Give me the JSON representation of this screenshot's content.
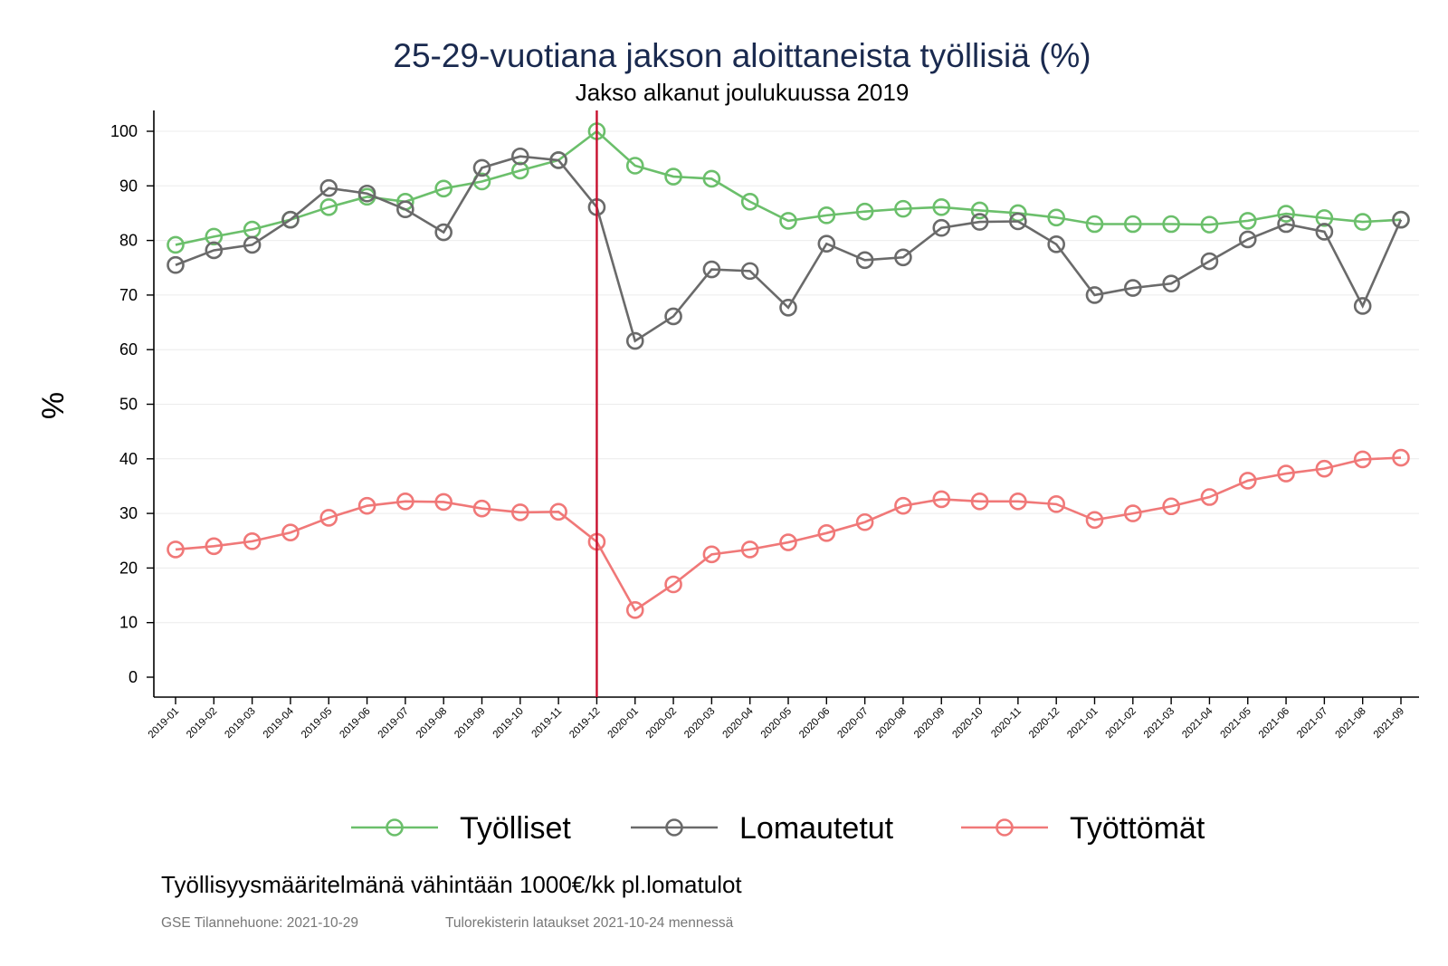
{
  "chart_data": {
    "type": "line",
    "title": "25-29-vuotiana jakson aloittaneista työllisiä (%)",
    "subtitle": "Jakso alkanut joulukuussa 2019",
    "ylabel": "%",
    "xlabel": "",
    "ylim": [
      0,
      100
    ],
    "yticks": [
      0,
      10,
      20,
      30,
      40,
      50,
      60,
      70,
      80,
      90,
      100
    ],
    "grid": true,
    "legend_position": "bottom",
    "reference_line": {
      "x": "2019-12",
      "color": "#c8102e"
    },
    "categories": [
      "2019-01",
      "2019-02",
      "2019-03",
      "2019-04",
      "2019-05",
      "2019-06",
      "2019-07",
      "2019-08",
      "2019-09",
      "2019-10",
      "2019-11",
      "2019-12",
      "2020-01",
      "2020-02",
      "2020-03",
      "2020-04",
      "2020-05",
      "2020-06",
      "2020-07",
      "2020-08",
      "2020-09",
      "2020-10",
      "2020-11",
      "2020-12",
      "2021-01",
      "2021-02",
      "2021-03",
      "2021-04",
      "2021-05",
      "2021-06",
      "2021-07",
      "2021-08",
      "2021-09"
    ],
    "series": [
      {
        "name": "Työlliset",
        "color": "#6bbf6b",
        "values": [
          79.2,
          80.7,
          82.0,
          83.8,
          86.1,
          88.0,
          87.1,
          89.5,
          90.8,
          92.8,
          94.7,
          100.0,
          93.7,
          91.7,
          91.3,
          87.1,
          83.6,
          84.6,
          85.3,
          85.8,
          86.1,
          85.5,
          85.0,
          84.2,
          83.0,
          83.0,
          83.0,
          82.9,
          83.6,
          84.9,
          84.1,
          83.4,
          83.8
        ]
      },
      {
        "name": "Lomautetut",
        "color": "#6a6a6a",
        "values": [
          75.5,
          78.2,
          79.2,
          83.8,
          89.6,
          88.6,
          85.7,
          81.5,
          93.3,
          95.4,
          94.7,
          86.1,
          61.6,
          66.1,
          74.7,
          74.4,
          67.7,
          79.4,
          76.4,
          76.9,
          82.3,
          83.4,
          83.5,
          79.3,
          70.0,
          71.3,
          72.1,
          76.2,
          80.2,
          83.0,
          81.6,
          68.0,
          83.8
        ]
      },
      {
        "name": "Työttömät",
        "color": "#f07878",
        "values": [
          23.4,
          24.0,
          24.9,
          26.5,
          29.2,
          31.4,
          32.2,
          32.1,
          30.9,
          30.2,
          30.3,
          24.8,
          12.3,
          17.0,
          22.5,
          23.4,
          24.7,
          26.4,
          28.4,
          31.4,
          32.6,
          32.2,
          32.2,
          31.7,
          28.8,
          30.0,
          31.3,
          33.0,
          36.0,
          37.3,
          38.2,
          39.9,
          40.2
        ]
      }
    ]
  },
  "footer": {
    "note": "Työllisyysmääritelmänä vähintään 1000€/kk pl.lomatulot",
    "source": "GSE Tilannehuone: 2021-10-29",
    "source2": "Tulorekisterin lataukset 2021-10-24 mennessä"
  }
}
